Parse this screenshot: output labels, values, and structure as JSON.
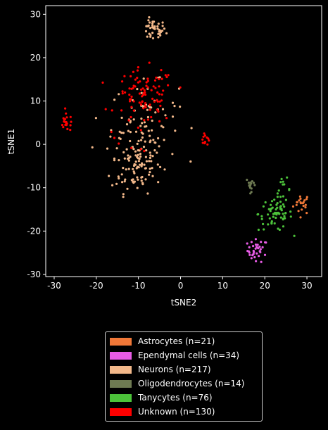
{
  "chart_data": {
    "type": "scatter",
    "xlabel": "tSNE2",
    "ylabel": "tSNE1",
    "xlim": [
      -32,
      33.5
    ],
    "ylim": [
      -30.5,
      32
    ],
    "xticks": [
      -30,
      -20,
      -10,
      0,
      10,
      20,
      30
    ],
    "yticks": [
      -30,
      -20,
      -10,
      0,
      10,
      20,
      30
    ],
    "grid": false,
    "legend_position": "below plot",
    "series": [
      {
        "name": "Astrocytes (n=21)",
        "color": "#f07838",
        "clusters": [
          {
            "cx": 28.8,
            "cy": -13.7,
            "sx": 1.0,
            "sy": 1.2,
            "n": 21
          }
        ]
      },
      {
        "name": "Ependymal cells (n=34)",
        "color": "#e85ce6",
        "clusters": [
          {
            "cx": 18.3,
            "cy": -24.5,
            "sx": 1.2,
            "sy": 1.3,
            "n": 34
          }
        ]
      },
      {
        "name": "Neurons (n=217)",
        "color": "#f2b88a",
        "clusters": [
          {
            "cx": -6.5,
            "cy": 26.3,
            "sx": 1.5,
            "sy": 1.2,
            "n": 40
          },
          {
            "cx": -10.5,
            "cy": -4.5,
            "sx": 3.0,
            "sy": 3.3,
            "n": 95
          },
          {
            "cx": -8.5,
            "cy": 5.0,
            "sx": 4.0,
            "sy": 4.5,
            "n": 82
          }
        ]
      },
      {
        "name": "Oligodendrocytes (n=14)",
        "color": "#6e7a52",
        "clusters": [
          {
            "cx": 16.8,
            "cy": -9.2,
            "sx": 0.6,
            "sy": 0.8,
            "n": 14
          }
        ]
      },
      {
        "name": "Tanycytes (n=76)",
        "color": "#4cc23a",
        "clusters": [
          {
            "cx": 24.5,
            "cy": -10.5,
            "sx": 0.8,
            "sy": 1.3,
            "n": 12
          },
          {
            "cx": 22.5,
            "cy": -16.0,
            "sx": 2.0,
            "sy": 2.0,
            "n": 64
          }
        ]
      },
      {
        "name": "Unknown (n=130)",
        "color": "#ff0000",
        "clusters": [
          {
            "cx": -27.0,
            "cy": 5.0,
            "sx": 0.9,
            "sy": 1.0,
            "n": 20
          },
          {
            "cx": -8.5,
            "cy": 11.0,
            "sx": 3.5,
            "sy": 3.2,
            "n": 88
          },
          {
            "cx": 5.8,
            "cy": 1.6,
            "sx": 0.6,
            "sy": 0.9,
            "n": 12
          },
          {
            "cx": -9.0,
            "cy": 2.0,
            "sx": 3.0,
            "sy": 2.5,
            "n": 10
          }
        ]
      }
    ]
  },
  "legend": {
    "items": [
      {
        "label": "Astrocytes (n=21)",
        "color": "#f07838"
      },
      {
        "label": "Ependymal cells (n=34)",
        "color": "#e85ce6"
      },
      {
        "label": "Neurons (n=217)",
        "color": "#f2b88a"
      },
      {
        "label": "Oligodendrocytes (n=14)",
        "color": "#6e7a52"
      },
      {
        "label": "Tanycytes (n=76)",
        "color": "#4cc23a"
      },
      {
        "label": "Unknown (n=130)",
        "color": "#ff0000"
      }
    ]
  }
}
